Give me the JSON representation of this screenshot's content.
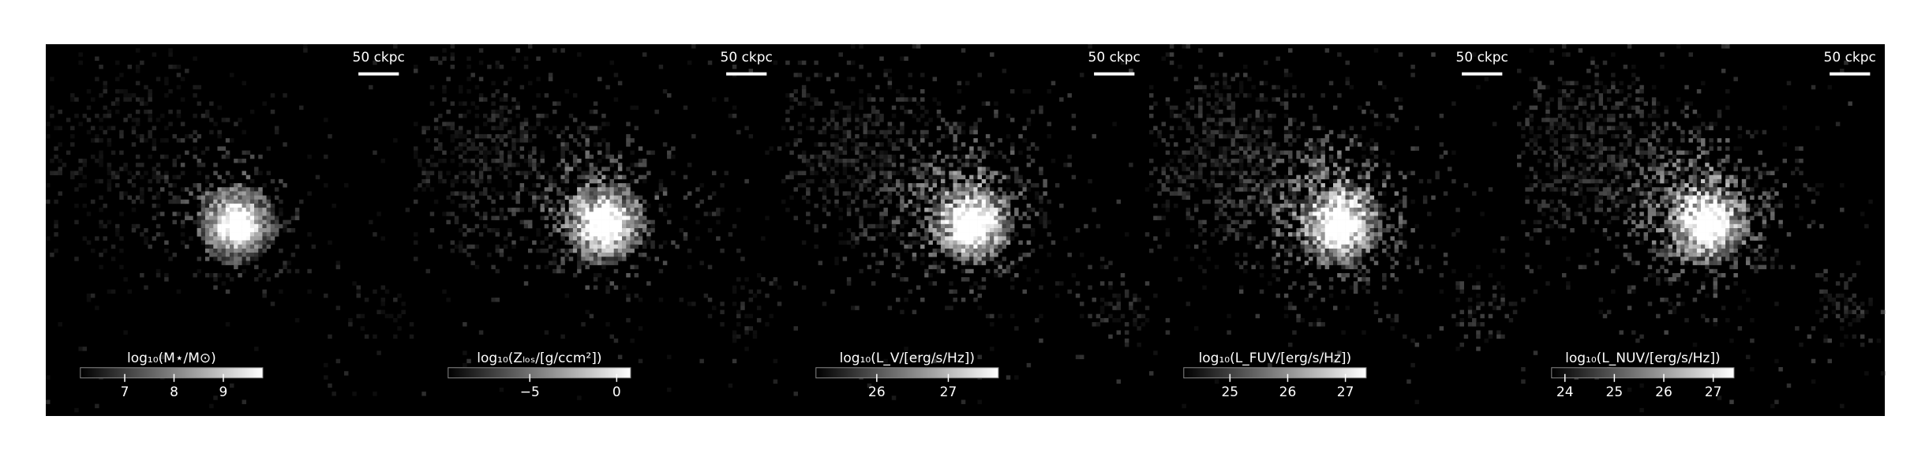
{
  "chart_data": [
    {
      "type": "image",
      "scalebar_label": "50 ckpc",
      "colorbar_label": "log₁₀(M⋆/M⊙)",
      "clim": [
        6.1,
        9.8
      ],
      "cticks": [
        7,
        8,
        9
      ]
    },
    {
      "type": "image",
      "scalebar_label": "50 ckpc",
      "colorbar_label": "log₁₀(Zₗₒₛ/[g/ccm²])",
      "clim": [
        -9.7,
        0.8
      ],
      "cticks": [
        {
          "value": -5,
          "label": "−5"
        },
        0
      ]
    },
    {
      "type": "image",
      "scalebar_label": "50 ckpc",
      "colorbar_label": "log₁₀(L_V/[erg/s/Hz])",
      "clim": [
        25.15,
        27.7
      ],
      "cticks": [
        26,
        27
      ]
    },
    {
      "type": "image",
      "scalebar_label": "50 ckpc",
      "colorbar_label": "log₁₀(L_FUV/[erg/s/Hz])",
      "clim": [
        24.2,
        27.36
      ],
      "cticks": [
        25,
        26,
        27
      ]
    },
    {
      "type": "image",
      "scalebar_label": "50 ckpc",
      "colorbar_label": "log₁₀(L_NUV/[erg/s/Hz])",
      "clim": [
        23.73,
        27.42
      ],
      "cticks": [
        24,
        25,
        26,
        27
      ]
    }
  ]
}
